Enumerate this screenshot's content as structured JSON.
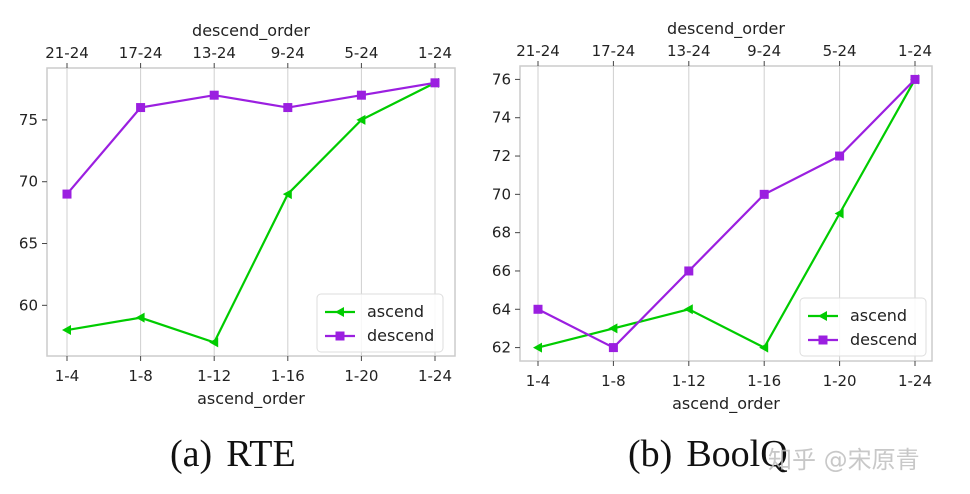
{
  "chart_data": [
    {
      "type": "line",
      "xlabel": "ascend_order",
      "x2label": "descend_order",
      "categories": [
        "1-4",
        "1-8",
        "1-12",
        "1-16",
        "1-20",
        "1-24"
      ],
      "top_categories": [
        "21-24",
        "17-24",
        "13-24",
        "9-24",
        "5-24",
        "1-24"
      ],
      "yticks": [
        60,
        65,
        70,
        75
      ],
      "ylim": [
        55.9,
        79.2
      ],
      "grid": "vertical",
      "legend_position": "bottom-right",
      "series": [
        {
          "name": "ascend",
          "color": "#00cc00",
          "marker": "triangle-left",
          "values": [
            58,
            59,
            57,
            69,
            75,
            78
          ]
        },
        {
          "name": "descend",
          "color": "#9b1fe0",
          "marker": "square",
          "values": [
            69,
            76,
            77,
            76,
            77,
            78
          ]
        }
      ]
    },
    {
      "type": "line",
      "xlabel": "ascend_order",
      "x2label": "descend_order",
      "categories": [
        "1-4",
        "1-8",
        "1-12",
        "1-16",
        "1-20",
        "1-24"
      ],
      "top_categories": [
        "21-24",
        "17-24",
        "13-24",
        "9-24",
        "5-24",
        "1-24"
      ],
      "yticks": [
        62,
        64,
        66,
        68,
        70,
        72,
        74,
        76
      ],
      "ylim": [
        61.3,
        76.7
      ],
      "grid": "vertical",
      "legend_position": "bottom-right",
      "series": [
        {
          "name": "ascend",
          "color": "#00cc00",
          "marker": "triangle-left",
          "values": [
            62,
            63,
            64,
            62,
            69,
            76
          ]
        },
        {
          "name": "descend",
          "color": "#9b1fe0",
          "marker": "square",
          "values": [
            64,
            62,
            66,
            70,
            72,
            76
          ]
        }
      ]
    }
  ],
  "captions": [
    {
      "tag": "(a)",
      "text": "RTE"
    },
    {
      "tag": "(b)",
      "text": "BoolQ"
    }
  ],
  "watermark": "知乎 @宋原青"
}
